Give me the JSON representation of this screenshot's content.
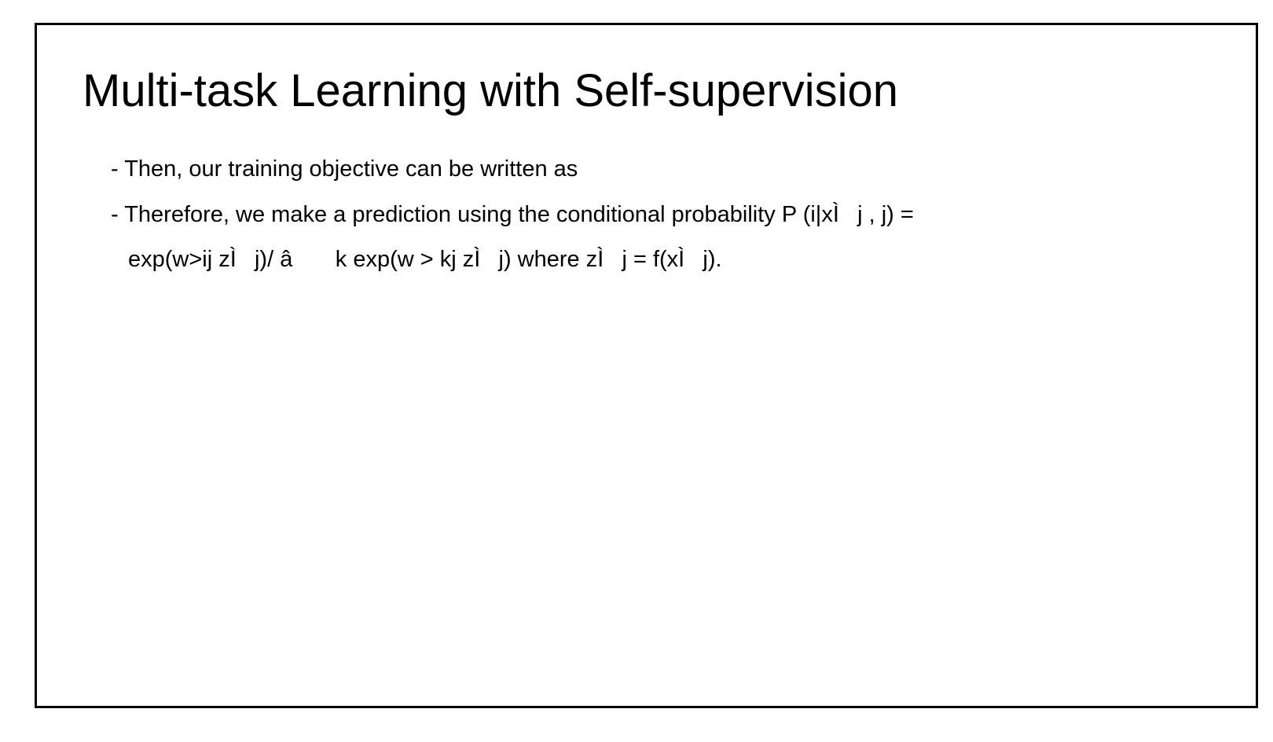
{
  "slide": {
    "title": "Multi-task Learning with Self-supervision",
    "lines": [
      "- Then, our training objective can be written as",
      "- Therefore, we make a prediction using the conditional probability P (i|xÌj , j) =",
      "exp(w>ij zÌj)/ â k exp(w > kj zÌj) where zÌj = f(xÌj)."
    ]
  }
}
